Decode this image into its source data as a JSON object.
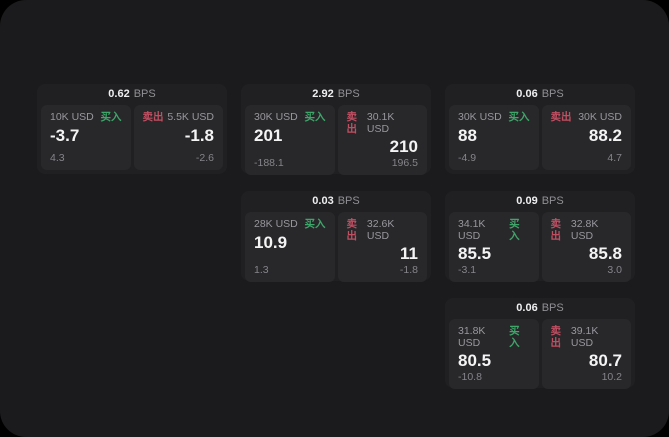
{
  "page": {
    "bps_suffix": "BPS"
  },
  "labels": {
    "buy": "买入",
    "sell": "卖出"
  },
  "colors": {
    "background": "#000000",
    "surface": "#1b1b1d",
    "card": "#202023",
    "panel": "#28282b",
    "buy_green": "#3fa66a",
    "sell_red": "#c14f62",
    "value_white": "#f4f4f5",
    "muted_gray": "#98989d"
  },
  "cards": [
    {
      "bps": "0.62",
      "buy": {
        "amount": "10K USD",
        "value": "-3.7",
        "change": "4.3"
      },
      "sell": {
        "amount": "5.5K USD",
        "value": "-1.8",
        "change": "-2.6"
      }
    },
    {
      "bps": "2.92",
      "buy": {
        "amount": "30K USD",
        "value": "201",
        "change": "-188.1"
      },
      "sell": {
        "amount": "30.1K USD",
        "value": "210",
        "change": "196.5"
      }
    },
    {
      "bps": "0.06",
      "buy": {
        "amount": "30K USD",
        "value": "88",
        "change": "-4.9"
      },
      "sell": {
        "amount": "30K USD",
        "value": "88.2",
        "change": "4.7"
      }
    },
    {
      "bps": "0.03",
      "buy": {
        "amount": "28K USD",
        "value": "10.9",
        "change": "1.3"
      },
      "sell": {
        "amount": "32.6K USD",
        "value": "11",
        "change": "-1.8"
      }
    },
    {
      "bps": "0.09",
      "buy": {
        "amount": "34.1K USD",
        "value": "85.5",
        "change": "-3.1"
      },
      "sell": {
        "amount": "32.8K USD",
        "value": "85.8",
        "change": "3.0"
      }
    },
    {
      "bps": "0.06",
      "buy": {
        "amount": "31.8K USD",
        "value": "80.5",
        "change": "-10.8"
      },
      "sell": {
        "amount": "39.1K USD",
        "value": "80.7",
        "change": "10.2"
      }
    }
  ]
}
